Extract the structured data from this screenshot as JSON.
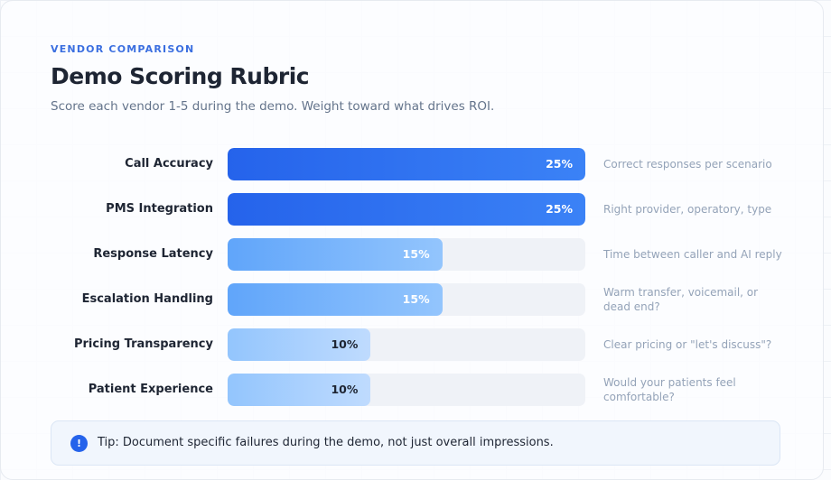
{
  "header": {
    "eyebrow": "VENDOR COMPARISON",
    "title": "Demo Scoring Rubric",
    "subtitle": "Score each vendor 1-5 during the demo. Weight toward what drives ROI."
  },
  "criteria": [
    {
      "label": "Call Accuracy",
      "weight": 25,
      "weight_label": "25%",
      "description": "Correct responses per scenario"
    },
    {
      "label": "PMS Integration",
      "weight": 25,
      "weight_label": "25%",
      "description": "Right provider, operatory, type"
    },
    {
      "label": "Response Latency",
      "weight": 15,
      "weight_label": "15%",
      "description": "Time between caller and AI reply"
    },
    {
      "label": "Escalation Handling",
      "weight": 15,
      "weight_label": "15%",
      "description": "Warm transfer, voicemail, or dead end?"
    },
    {
      "label": "Pricing Transparency",
      "weight": 10,
      "weight_label": "10%",
      "description": "Clear pricing or \"let's discuss\"?"
    },
    {
      "label": "Patient Experience",
      "weight": 10,
      "weight_label": "10%",
      "description": "Would your patients feel comfortable?"
    }
  ],
  "colors": {
    "high": [
      "#2563eb",
      "#3b82f6"
    ],
    "mid": [
      "#60a5fa",
      "#93c5fd"
    ],
    "low": [
      "#93c5fd",
      "#bfdbfe"
    ],
    "accent": "#2563eb"
  },
  "tip": {
    "icon": "info-icon",
    "icon_glyph": "!",
    "text": "Tip: Document specific failures during the demo, not just overall impressions."
  }
}
